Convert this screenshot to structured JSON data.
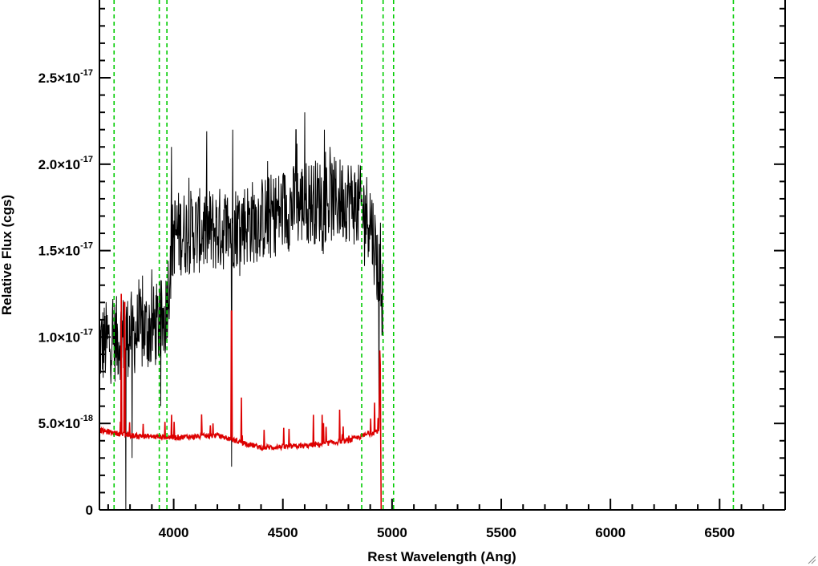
{
  "chart_data": {
    "type": "line",
    "title": "",
    "xlabel": "Rest Wavelength (Ang)",
    "ylabel": "Relative Flux (cgs)",
    "xlim": [
      3660,
      6800
    ],
    "ylim": [
      0,
      2.95e-17
    ],
    "grid": false,
    "x_ticks": [
      4000,
      4500,
      5000,
      5500,
      6000,
      6500
    ],
    "x_tick_labels": [
      "4000",
      "4500",
      "5000",
      "5500",
      "6000",
      "6500"
    ],
    "y_ticks": [
      0,
      5e-18,
      1e-17,
      1.5e-17,
      2e-17,
      2.5e-17
    ],
    "y_tick_labels": [
      {
        "mantissa": "0",
        "exponent": ""
      },
      {
        "mantissa": "5.0×10",
        "exponent": "-18"
      },
      {
        "mantissa": "1.0×10",
        "exponent": "-17"
      },
      {
        "mantissa": "1.5×10",
        "exponent": "-17"
      },
      {
        "mantissa": "2.0×10",
        "exponent": "-17"
      },
      {
        "mantissa": "2.5×10",
        "exponent": "-17"
      }
    ],
    "vertical_lines": {
      "color": "#00cc00",
      "style": "dashed",
      "x": [
        3727,
        3934,
        3969,
        4861,
        4959,
        5007,
        6563
      ]
    },
    "series": [
      {
        "color": "#000000",
        "style": "spectrum",
        "x_range": [
          3660,
          4960
        ],
        "noise": 2.5e-18,
        "envelope": [
          [
            3660,
            9.5e-18
          ],
          [
            3800,
            1.02e-17
          ],
          [
            3900,
            1.05e-17
          ],
          [
            3960,
            1.1e-17
          ],
          [
            4000,
            1.6e-17
          ],
          [
            4200,
            1.62e-17
          ],
          [
            4400,
            1.68e-17
          ],
          [
            4600,
            1.78e-17
          ],
          [
            4800,
            1.8e-17
          ],
          [
            4900,
            1.7e-17
          ],
          [
            4960,
            1.2e-17
          ]
        ],
        "spikes": [
          [
            4265,
            2.95e-17
          ],
          [
            4270,
            2.2e-17
          ],
          [
            4560,
            2.2e-17
          ],
          [
            4600,
            2.3e-17
          ],
          [
            4690,
            2.2e-17
          ],
          [
            4715,
            2.1e-17
          ],
          [
            3760,
            1.15e-17
          ],
          [
            3990,
            2.1e-17
          ]
        ],
        "dips": [
          [
            3780,
            0
          ],
          [
            4265,
            2.5e-18
          ],
          [
            3810,
            3e-18
          ],
          [
            4940,
            5e-18
          ],
          [
            3940,
            6e-18
          ]
        ]
      },
      {
        "color": "#dd0000",
        "style": "error",
        "baseline": [
          [
            3660,
            4.6e-18
          ],
          [
            3800,
            4.3e-18
          ],
          [
            4000,
            4.2e-18
          ],
          [
            4200,
            4.3e-18
          ],
          [
            4400,
            3.6e-18
          ],
          [
            4600,
            3.7e-18
          ],
          [
            4800,
            4e-18
          ],
          [
            4940,
            4.6e-18
          ],
          [
            4945,
            1.05e-17
          ],
          [
            4950,
            0
          ],
          [
            6800,
            0
          ]
        ],
        "spikes": [
          [
            3760,
            1.25e-17
          ],
          [
            3775,
            1.2e-17
          ],
          [
            3990,
            5.5e-18
          ],
          [
            4265,
            1.15e-17
          ],
          [
            4310,
            6.5e-18
          ],
          [
            4180,
            5e-18
          ],
          [
            4640,
            5.5e-18
          ],
          [
            4680,
            5.5e-18
          ],
          [
            4760,
            5.8e-18
          ],
          [
            4920,
            6.2e-18
          ]
        ]
      }
    ]
  }
}
